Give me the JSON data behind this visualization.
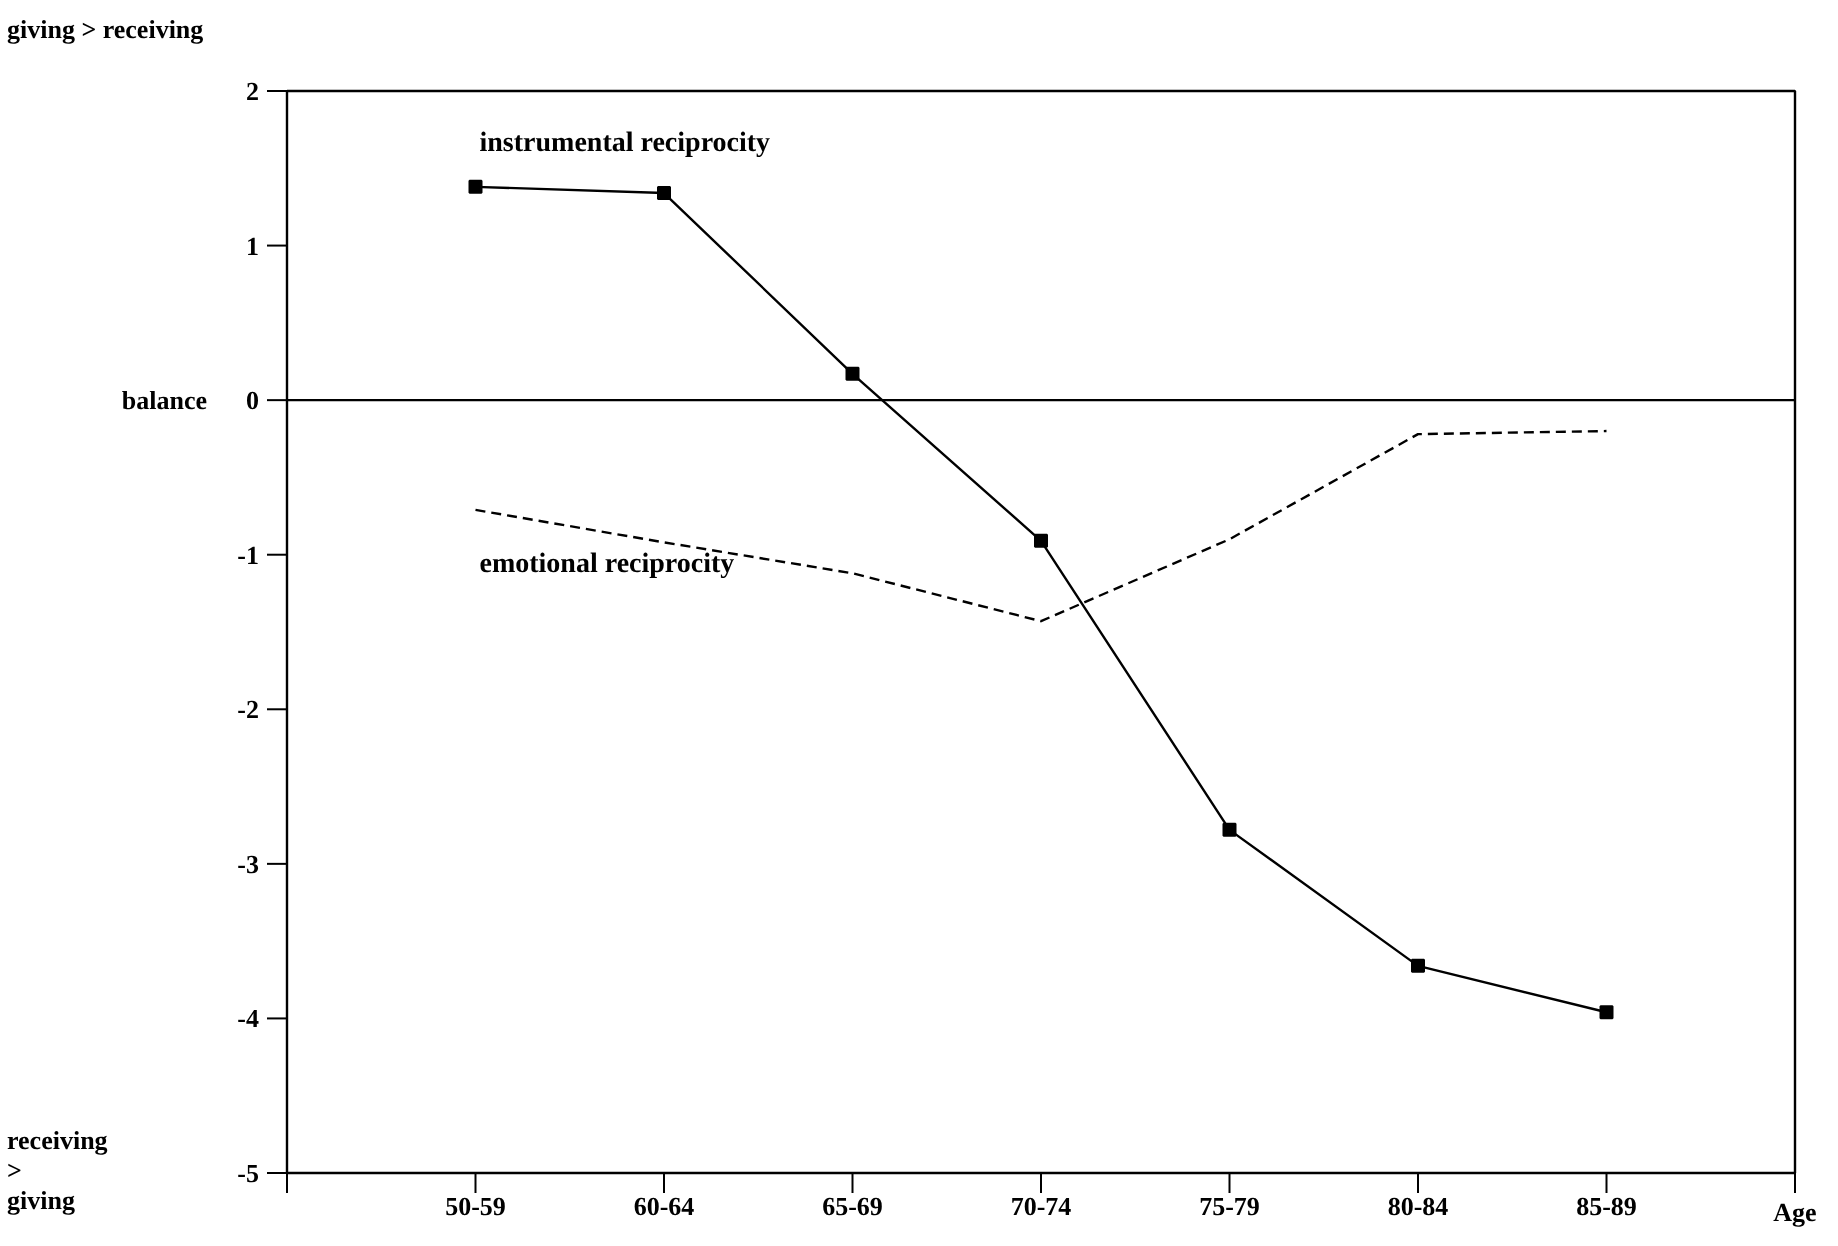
{
  "chart_data": {
    "type": "line",
    "categories": [
      "50-59",
      "60-64",
      "65-69",
      "70-74",
      "75-79",
      "80-84",
      "85-89"
    ],
    "xlabel": "Age",
    "series": [
      {
        "name": "instrumental reciprocity",
        "color": "#000000",
        "marker": "square",
        "line_style": "solid",
        "values": [
          1.38,
          1.34,
          0.17,
          -0.91,
          -2.78,
          -3.66,
          -3.96
        ]
      },
      {
        "name": "emotional reciprocity",
        "color": "#000000",
        "marker": "none",
        "line_style": "dashed",
        "values": [
          -0.71,
          -0.92,
          -1.12,
          -1.43,
          -0.9,
          -0.22,
          -0.2
        ]
      }
    ],
    "ylim": [
      -5,
      2
    ],
    "yticks": [
      -5,
      -4,
      -3,
      -2,
      -1,
      0,
      1,
      2
    ],
    "ref_lines": [
      {
        "axis": "y",
        "value": 0,
        "color": "#000000",
        "line_style": "solid"
      }
    ],
    "annotations": [
      "giving > receiving",
      "receiving\n>\ngiving",
      "balance"
    ],
    "grid": false
  }
}
